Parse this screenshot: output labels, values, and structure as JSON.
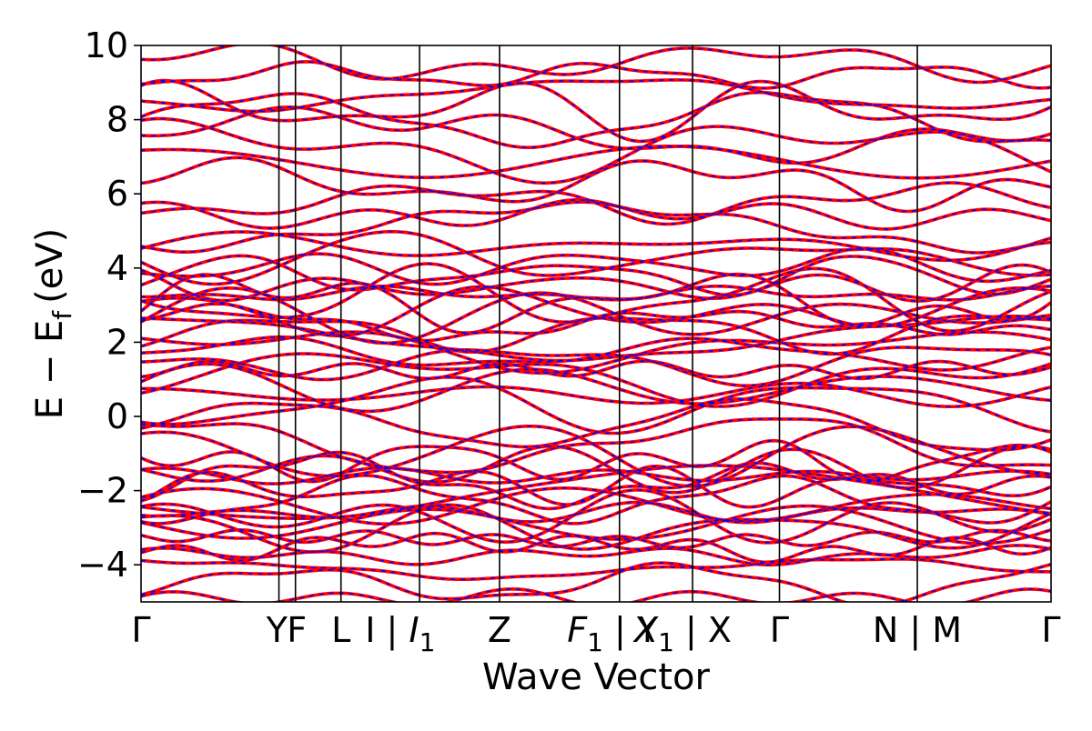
{
  "chart_data": {
    "type": "line",
    "title": "",
    "xlabel": "Wave Vector",
    "ylabel": "E − E",
    "ylabel_subscript": "f",
    "ylabel_unit": "(eV)",
    "ylim": [
      -5,
      10
    ],
    "yticks": [
      -4,
      -2,
      0,
      2,
      4,
      6,
      8,
      10
    ],
    "ytick_labels": [
      "−4",
      "−2",
      "0",
      "2",
      "4",
      "6",
      "8",
      "10"
    ],
    "x_range": [
      0,
      6.6
    ],
    "kpoint_positions": [
      0,
      1.0,
      1.12,
      1.45,
      2.02,
      2.6,
      3.47,
      4.0,
      4.63,
      5.63,
      6.6
    ],
    "kpoint_labels": [
      {
        "text": "Γ",
        "pos": 0.0
      },
      {
        "text": "Y",
        "pos": 0.985
      },
      {
        "text": "F",
        "pos": 1.13
      },
      {
        "text": "L",
        "pos": 1.45
      },
      {
        "text": "I | ",
        "pos": 1.88,
        "sub_base": "I",
        "sub": "1"
      },
      {
        "text": "Z",
        "pos": 2.6
      },
      {
        "text": "",
        "pos": 3.42,
        "sub_base": "F",
        "sub": "1",
        "suffix": " | Y"
      },
      {
        "text": "",
        "pos": 3.93,
        "sub_base": "X",
        "sub": "1",
        "suffix": " | X"
      },
      {
        "text": "Γ",
        "pos": 4.63
      },
      {
        "text": "N | M",
        "pos": 5.63
      },
      {
        "text": "Γ",
        "pos": 6.6
      }
    ],
    "series": [
      {
        "color": "#ff0000",
        "style": "solid"
      },
      {
        "color": "#0000ff",
        "style": "dashed"
      }
    ],
    "band_offsets_at_gamma": [
      -4.9,
      -3.75,
      -3.3,
      -2.9,
      -2.6,
      -2.25,
      -1.9,
      -1.6,
      -1.2,
      -0.75,
      -0.2,
      0.6,
      0.75,
      1.45,
      1.85,
      2.1,
      2.5,
      2.85,
      3.1,
      3.3,
      3.5,
      4.05,
      4.6,
      5.45,
      6.3,
      6.85,
      7.2,
      8.0,
      8.3,
      9.55
    ],
    "grid": false,
    "legend": "none"
  }
}
